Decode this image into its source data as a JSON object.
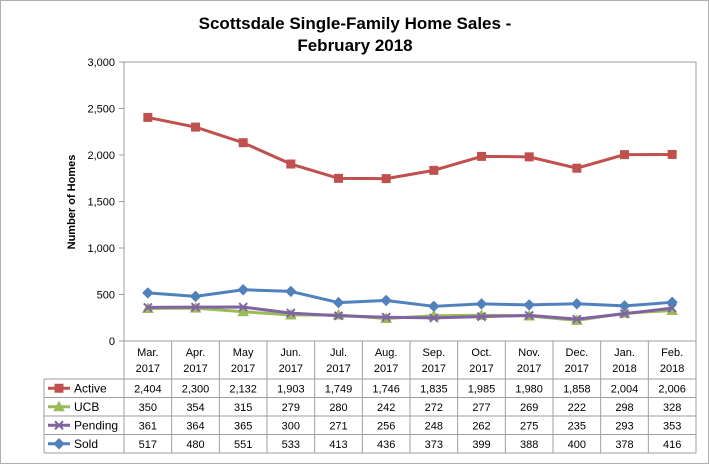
{
  "chart_data": {
    "type": "line",
    "title_line1": "Scottsdale Single-Family Home Sales -",
    "title_line2": "February 2018",
    "xlabel": "",
    "ylabel": "Number of Homes",
    "ylim": [
      0,
      3000
    ],
    "yticks": [
      "0",
      "500",
      "1,000",
      "1,500",
      "2,000",
      "2,500",
      "3,000"
    ],
    "ytick_values": [
      0,
      500,
      1000,
      1500,
      2000,
      2500,
      3000
    ],
    "grid": false,
    "legend": "data-table-left",
    "categories": [
      [
        "Mar.",
        "2017"
      ],
      [
        "Apr.",
        "2017"
      ],
      [
        "May",
        "2017"
      ],
      [
        "Jun.",
        "2017"
      ],
      [
        "Jul.",
        "2017"
      ],
      [
        "Aug.",
        "2017"
      ],
      [
        "Sep.",
        "2017"
      ],
      [
        "Oct.",
        "2017"
      ],
      [
        "Nov.",
        "2017"
      ],
      [
        "Dec.",
        "2017"
      ],
      [
        "Jan.",
        "2018"
      ],
      [
        "Feb.",
        "2018"
      ]
    ],
    "series": [
      {
        "name": "Active",
        "color": "#c0504d",
        "marker": "square",
        "values": [
          2404,
          2300,
          2132,
          1903,
          1749,
          1746,
          1835,
          1985,
          1980,
          1858,
          2004,
          2006
        ],
        "labels": [
          "2,404",
          "2,300",
          "2,132",
          "1,903",
          "1,749",
          "1,746",
          "1,835",
          "1,985",
          "1,980",
          "1,858",
          "2,004",
          "2,006"
        ]
      },
      {
        "name": "UCB",
        "color": "#9bbb59",
        "marker": "triangle",
        "values": [
          350,
          354,
          315,
          279,
          280,
          242,
          272,
          277,
          269,
          222,
          298,
          328
        ],
        "labels": [
          "350",
          "354",
          "315",
          "279",
          "280",
          "242",
          "272",
          "277",
          "269",
          "222",
          "298",
          "328"
        ]
      },
      {
        "name": "Pending",
        "color": "#8064a2",
        "marker": "x",
        "values": [
          361,
          364,
          365,
          300,
          271,
          256,
          248,
          262,
          275,
          235,
          293,
          353
        ],
        "labels": [
          "361",
          "364",
          "365",
          "300",
          "271",
          "256",
          "248",
          "262",
          "275",
          "235",
          "293",
          "353"
        ]
      },
      {
        "name": "Sold",
        "color": "#4f81bd",
        "marker": "diamond",
        "values": [
          517,
          480,
          551,
          533,
          413,
          436,
          373,
          399,
          388,
          400,
          378,
          416
        ],
        "labels": [
          "517",
          "480",
          "551",
          "533",
          "413",
          "436",
          "373",
          "399",
          "388",
          "400",
          "378",
          "416"
        ]
      }
    ]
  }
}
